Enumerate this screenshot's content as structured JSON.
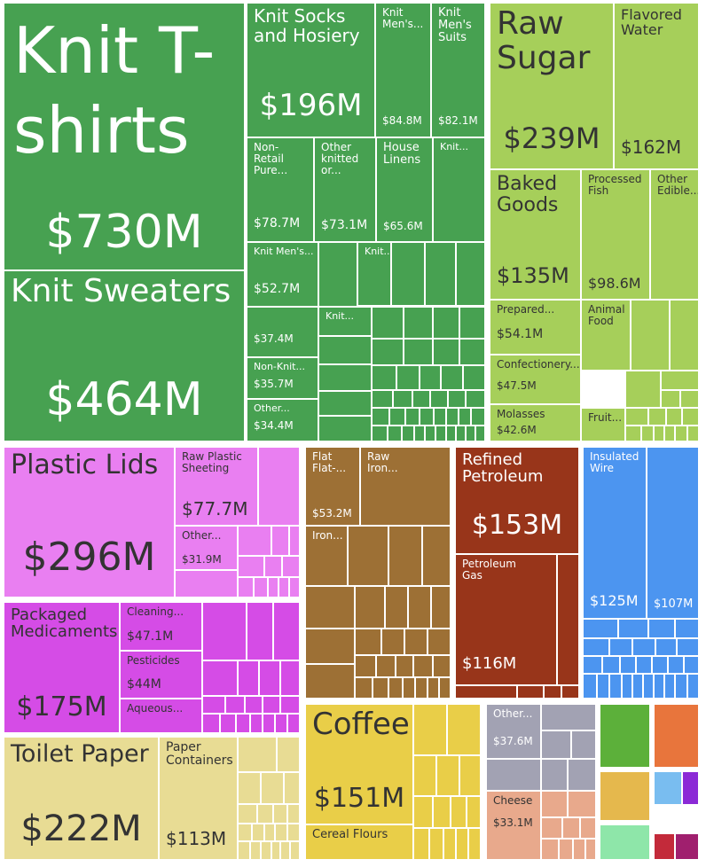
{
  "chart_data": {
    "type": "treemap",
    "colors": {
      "textiles": "#47a151",
      "foodstuffs": "#a6cf5a",
      "plastics": "#e97ff1",
      "chemicals": "#d54ce6",
      "paper": "#e8dc94",
      "metals": "#9d7035",
      "mineral": "#98351a",
      "machines": "#4c95f0",
      "vegetable": "#e9ce48",
      "animal": "#a2a2b3",
      "animal_hides": "#e8a98c",
      "misc_green": "#5cb03a",
      "misc_orange": "#e8753c",
      "misc_yellow": "#e5b84d",
      "misc_lightblue": "#79bdf0",
      "misc_purple": "#8b2ad6",
      "misc_mint": "#8ee6a9",
      "misc_red": "#c32a3a",
      "misc_magenta": "#a01f6e",
      "text_light": "#ffffff",
      "text_dark": "#333333"
    },
    "tiles": [
      {
        "id": "knit-tshirts",
        "label": "Knit T-\nshirts",
        "value": "$730M",
        "value_musd": 730,
        "group": "textiles"
      },
      {
        "id": "knit-sweaters",
        "label": "Knit Sweaters",
        "value": "$464M",
        "value_musd": 464,
        "group": "textiles"
      },
      {
        "id": "knit-socks",
        "label": "Knit Socks\nand Hosiery",
        "value": "$196M",
        "value_musd": 196,
        "group": "textiles"
      },
      {
        "id": "knit-mens1",
        "label": "Knit\nMen's...",
        "value": "$84.8M",
        "value_musd": 84.8,
        "group": "textiles"
      },
      {
        "id": "knit-mens-suits",
        "label": "Knit\nMen's\nSuits",
        "value": "$82.1M",
        "value_musd": 82.1,
        "group": "textiles"
      },
      {
        "id": "non-retail",
        "label": "Non-\nRetail\nPure...",
        "value": "$78.7M",
        "value_musd": 78.7,
        "group": "textiles"
      },
      {
        "id": "other-knitted",
        "label": "Other\nknitted\nor...",
        "value": "$73.1M",
        "value_musd": 73.1,
        "group": "textiles"
      },
      {
        "id": "house-linens",
        "label": "House\nLinens",
        "value": "$65.6M",
        "value_musd": 65.6,
        "group": "textiles"
      },
      {
        "id": "knit-small1",
        "label": "Knit...",
        "value": "",
        "group": "textiles"
      },
      {
        "id": "knit-mens2",
        "label": "Knit Men's...",
        "value": "$52.7M",
        "value_musd": 52.7,
        "group": "textiles"
      },
      {
        "id": "knit-small2",
        "label": "Knit...",
        "value": "",
        "group": "textiles"
      },
      {
        "id": "textile-374",
        "label": "",
        "value": "$37.4M",
        "value_musd": 37.4,
        "group": "textiles"
      },
      {
        "id": "knit-small3",
        "label": "Knit...",
        "value": "",
        "group": "textiles"
      },
      {
        "id": "non-knit",
        "label": "Non-Knit...",
        "value": "$35.7M",
        "value_musd": 35.7,
        "group": "textiles"
      },
      {
        "id": "other-textile",
        "label": "Other...",
        "value": "$34.4M",
        "value_musd": 34.4,
        "group": "textiles"
      },
      {
        "id": "raw-sugar",
        "label": "Raw\nSugar",
        "value": "$239M",
        "value_musd": 239,
        "group": "foodstuffs"
      },
      {
        "id": "flavored-water",
        "label": "Flavored\nWater",
        "value": "$162M",
        "value_musd": 162,
        "group": "foodstuffs"
      },
      {
        "id": "baked-goods",
        "label": "Baked\nGoods",
        "value": "$135M",
        "value_musd": 135,
        "group": "foodstuffs"
      },
      {
        "id": "processed-fish",
        "label": "Processed\nFish",
        "value": "$98.6M",
        "value_musd": 98.6,
        "group": "foodstuffs"
      },
      {
        "id": "other-edible",
        "label": "Other\nEdible...",
        "value": "",
        "group": "foodstuffs"
      },
      {
        "id": "prepared",
        "label": "Prepared...",
        "value": "$54.1M",
        "value_musd": 54.1,
        "group": "foodstuffs"
      },
      {
        "id": "animal-food",
        "label": "Animal\nFood",
        "value": "",
        "group": "foodstuffs"
      },
      {
        "id": "confectionery",
        "label": "Confectionery...",
        "value": "$47.5M",
        "value_musd": 47.5,
        "group": "foodstuffs"
      },
      {
        "id": "molasses",
        "label": "Molasses",
        "value": "$42.6M",
        "value_musd": 42.6,
        "group": "foodstuffs"
      },
      {
        "id": "fruit",
        "label": "Fruit...",
        "value": "",
        "group": "foodstuffs"
      },
      {
        "id": "plastic-lids",
        "label": "Plastic Lids",
        "value": "$296M",
        "value_musd": 296,
        "group": "plastics"
      },
      {
        "id": "raw-plastic-sheeting",
        "label": "Raw Plastic\nSheeting",
        "value": "$77.7M",
        "value_musd": 77.7,
        "group": "plastics"
      },
      {
        "id": "other-plastic",
        "label": "Other...",
        "value": "$31.9M",
        "value_musd": 31.9,
        "group": "plastics"
      },
      {
        "id": "packaged-medicaments",
        "label": "Packaged\nMedicaments",
        "value": "$175M",
        "value_musd": 175,
        "group": "chemicals"
      },
      {
        "id": "cleaning",
        "label": "Cleaning...",
        "value": "$47.1M",
        "value_musd": 47.1,
        "group": "chemicals"
      },
      {
        "id": "pesticides",
        "label": "Pesticides",
        "value": "$44M",
        "value_musd": 44,
        "group": "chemicals"
      },
      {
        "id": "aqueous",
        "label": "Aqueous...",
        "value": "",
        "group": "chemicals"
      },
      {
        "id": "toilet-paper",
        "label": "Toilet Paper",
        "value": "$222M",
        "value_musd": 222,
        "group": "paper"
      },
      {
        "id": "paper-containers",
        "label": "Paper\nContainers",
        "value": "$113M",
        "value_musd": 113,
        "group": "paper"
      },
      {
        "id": "flat-flat",
        "label": "Flat\nFlat-...",
        "value": "$53.2M",
        "value_musd": 53.2,
        "group": "metals"
      },
      {
        "id": "raw-iron",
        "label": "Raw\nIron...",
        "value": "",
        "group": "metals"
      },
      {
        "id": "iron",
        "label": "Iron...",
        "value": "",
        "group": "metals"
      },
      {
        "id": "refined-petroleum",
        "label": "Refined\nPetroleum",
        "value": "$153M",
        "value_musd": 153,
        "group": "mineral"
      },
      {
        "id": "petroleum-gas",
        "label": "Petroleum\nGas",
        "value": "$116M",
        "value_musd": 116,
        "group": "mineral"
      },
      {
        "id": "insulated-wire",
        "label": "Insulated\nWire",
        "value": "$125M",
        "value_musd": 125,
        "group": "machines"
      },
      {
        "id": "machines-107",
        "label": "",
        "value": "$107M",
        "value_musd": 107,
        "group": "machines"
      },
      {
        "id": "coffee",
        "label": "Coffee",
        "value": "$151M",
        "value_musd": 151,
        "group": "vegetable"
      },
      {
        "id": "cereal-flours",
        "label": "Cereal Flours",
        "value": "",
        "group": "vegetable"
      },
      {
        "id": "other-animal",
        "label": "Other...",
        "value": "$37.6M",
        "value_musd": 37.6,
        "group": "animal"
      },
      {
        "id": "cheese",
        "label": "Cheese",
        "value": "$33.1M",
        "value_musd": 33.1,
        "group": "animal_hides"
      }
    ]
  }
}
